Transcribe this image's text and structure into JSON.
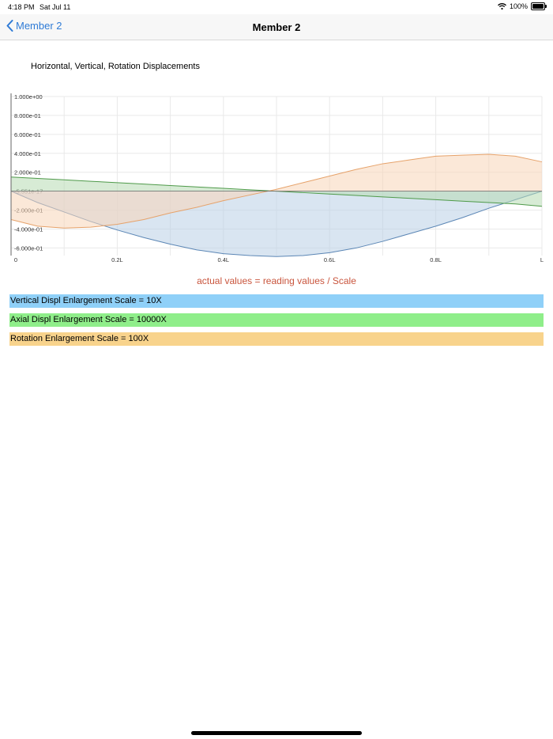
{
  "status": {
    "time": "4:18 PM",
    "date": "Sat Jul 11",
    "battery_text": "100%",
    "battery_level": 1.0
  },
  "nav": {
    "back_label": "Member 2",
    "title": "Member 2"
  },
  "chart_title": "Horizontal, Vertical, Rotation Displacements",
  "chart_data": {
    "type": "area",
    "x_tick_labels": [
      "0",
      "0.2L",
      "0.4L",
      "0.6L",
      "0.8L",
      "L"
    ],
    "y_tick_labels": [
      "1.000e+00",
      "8.000e-01",
      "6.000e-01",
      "4.000e-01",
      "2.000e-01",
      "-5.551e-17",
      "-2.000e-01",
      "-4.000e-01",
      "-6.000e-01"
    ],
    "xlim": [
      0,
      1
    ],
    "ylim": [
      -0.68,
      1.0
    ],
    "grid": true,
    "x": [
      0,
      0.05,
      0.1,
      0.15,
      0.2,
      0.25,
      0.3,
      0.35,
      0.4,
      0.45,
      0.5,
      0.55,
      0.6,
      0.65,
      0.7,
      0.75,
      0.8,
      0.85,
      0.9,
      0.95,
      1.0
    ],
    "series": [
      {
        "values": [
          0.0,
          -0.12,
          -0.22,
          -0.32,
          -0.41,
          -0.49,
          -0.56,
          -0.62,
          -0.66,
          -0.68,
          -0.69,
          -0.68,
          -0.65,
          -0.6,
          -0.53,
          -0.45,
          -0.37,
          -0.28,
          -0.18,
          -0.09,
          0.0
        ],
        "color": "#5b86b5",
        "fill": "#b9cfe6"
      },
      {
        "values": [
          0.15,
          0.135,
          0.12,
          0.105,
          0.09,
          0.075,
          0.06,
          0.045,
          0.03,
          0.015,
          0.0,
          -0.015,
          -0.03,
          -0.045,
          -0.06,
          -0.075,
          -0.09,
          -0.105,
          -0.12,
          -0.135,
          -0.16
        ],
        "color": "#4f9a4a",
        "fill": "#b7dbb2"
      },
      {
        "values": [
          -0.3,
          -0.37,
          -0.39,
          -0.38,
          -0.35,
          -0.3,
          -0.23,
          -0.17,
          -0.1,
          -0.04,
          0.02,
          0.09,
          0.16,
          0.23,
          0.29,
          0.33,
          0.37,
          0.38,
          0.39,
          0.37,
          0.31
        ],
        "color": "#e6a26a",
        "fill": "#f7d6b8"
      }
    ]
  },
  "note": "actual values = reading values / Scale",
  "legend": [
    {
      "label": "Vertical Displ Enlargement Scale = 10X",
      "color": "#8fd0f8"
    },
    {
      "label": "Axial Displ Enlargement Scale = 10000X",
      "color": "#8fee8a"
    },
    {
      "label": "Rotation Enlargement Scale = 100X",
      "color": "#f8d38c"
    }
  ]
}
